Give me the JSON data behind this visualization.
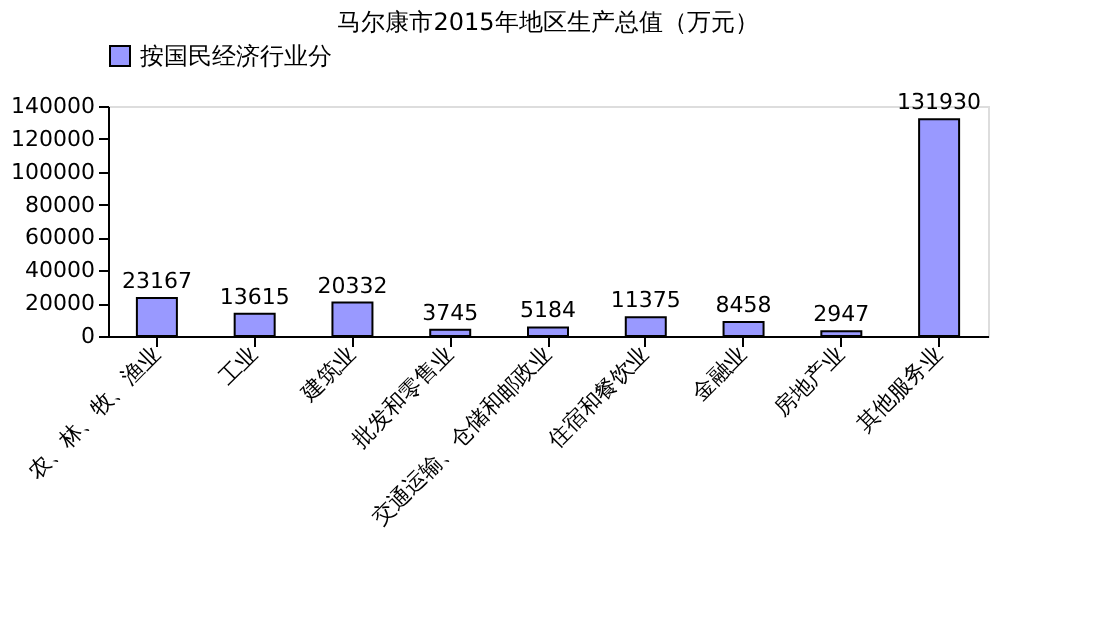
{
  "chart_data": {
    "type": "bar",
    "title": "马尔康市2015年地区生产总值（万元）",
    "categories": [
      "农、林、牧、渔业",
      "工业",
      "建筑业",
      "批发和零售业",
      "交通运输、仓储和邮政业",
      "住宿和餐饮业",
      "金融业",
      "房地产业",
      "其他服务业"
    ],
    "series": [
      {
        "name": "按国民经济行业分",
        "color": "#9999ff",
        "values": [
          23167,
          13615,
          20332,
          3745,
          5184,
          11375,
          8458,
          2947,
          131930
        ]
      }
    ],
    "ylim": [
      0,
      140000
    ],
    "yticks": [
      0,
      20000,
      40000,
      60000,
      80000,
      100000,
      120000,
      140000
    ],
    "data_labels": true,
    "legend": "top"
  }
}
